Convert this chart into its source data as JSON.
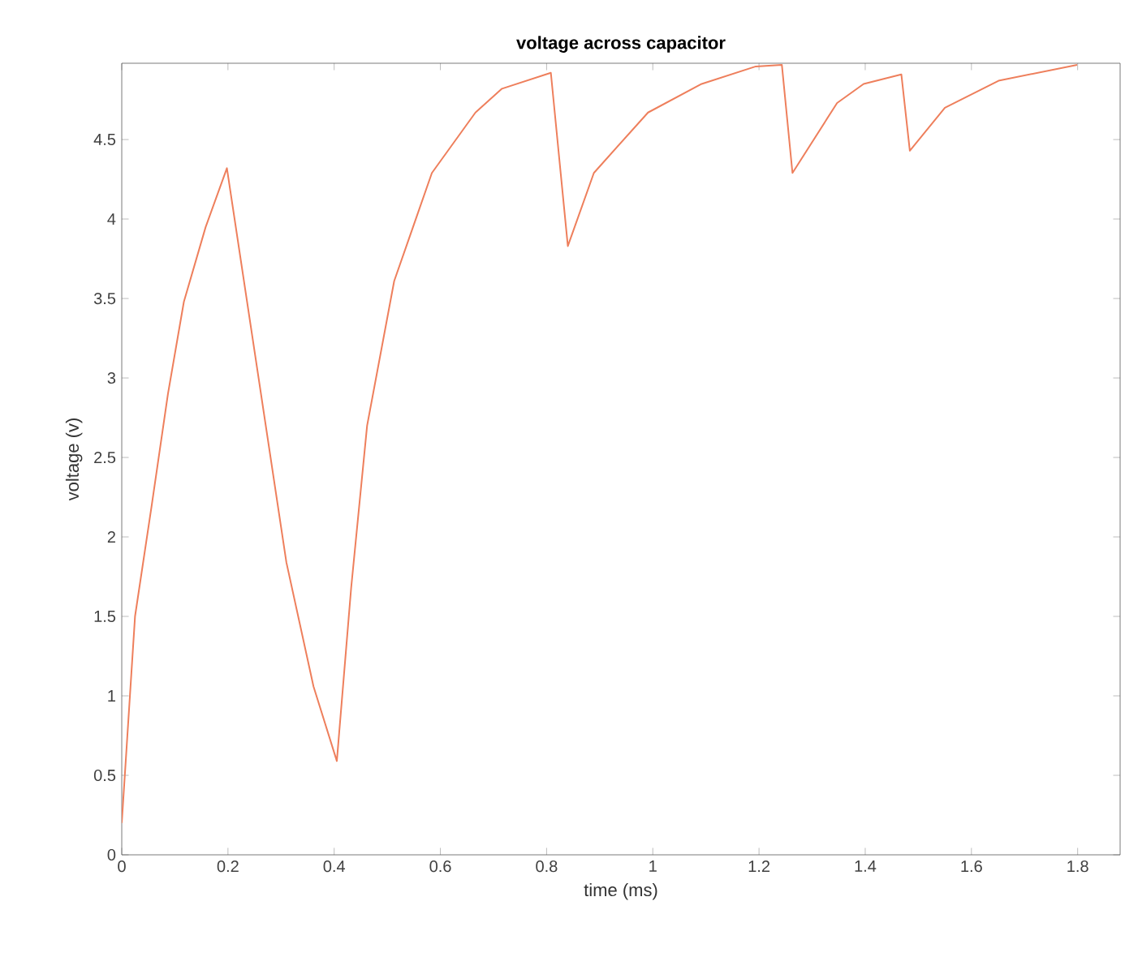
{
  "chart_data": {
    "type": "line",
    "title": "voltage across capacitor",
    "xlabel": "time (ms)",
    "ylabel": "voltage (v)",
    "x": [
      0,
      0.025,
      0.056,
      0.087,
      0.117,
      0.158,
      0.198,
      0.259,
      0.31,
      0.361,
      0.405,
      0.432,
      0.462,
      0.513,
      0.584,
      0.666,
      0.716,
      0.808,
      0.84,
      0.889,
      0.991,
      1.092,
      1.194,
      1.243,
      1.263,
      1.347,
      1.397,
      1.468,
      1.484,
      1.55,
      1.651,
      1.799
    ],
    "values": [
      0.2,
      1.5,
      2.19,
      2.9,
      3.48,
      3.95,
      4.32,
      2.97,
      1.84,
      1.06,
      0.59,
      1.68,
      2.7,
      3.61,
      4.29,
      4.67,
      4.82,
      4.92,
      3.83,
      4.29,
      4.67,
      4.85,
      4.96,
      4.97,
      4.29,
      4.73,
      4.85,
      4.91,
      4.43,
      4.7,
      4.87,
      4.97
    ],
    "color": "#ee7f5c",
    "xlim": [
      0,
      1.88
    ],
    "ylim": [
      0,
      4.98
    ],
    "xticks": [
      0,
      0.2,
      0.4,
      0.6,
      0.8,
      1,
      1.2,
      1.4,
      1.6,
      1.8
    ],
    "yticks": [
      0,
      0.5,
      1,
      1.5,
      2,
      2.5,
      3,
      3.5,
      4,
      4.5
    ]
  }
}
